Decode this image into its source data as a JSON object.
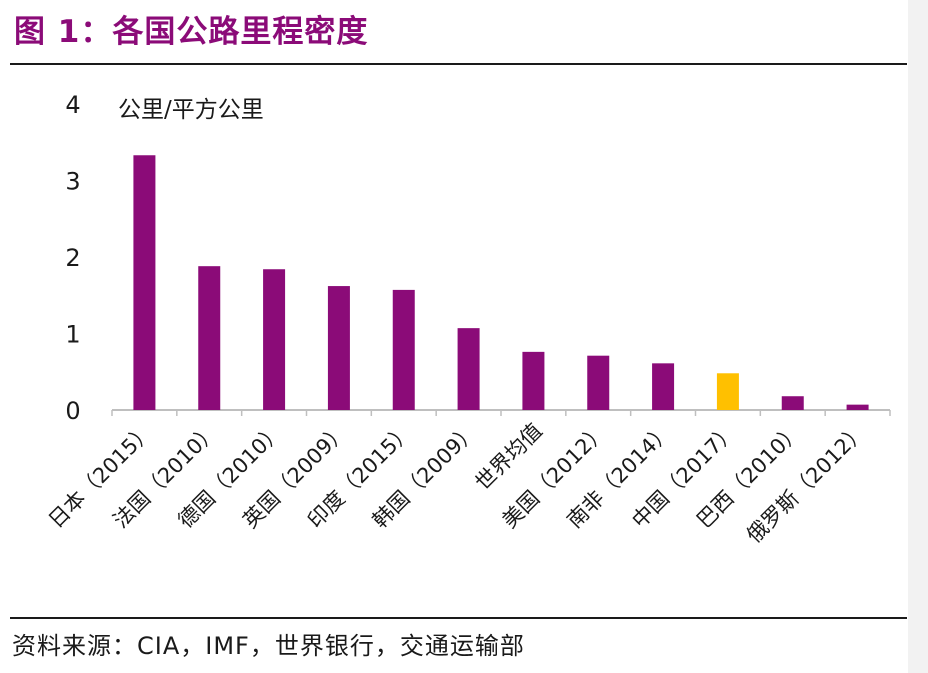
{
  "figure": {
    "title": "图 1：各国公路里程密度",
    "source": "资料来源：CIA，IMF，世界银行，交通运输部"
  },
  "chart_data": {
    "type": "bar",
    "title": "",
    "ylabel": "公里/平方公里",
    "xlabel": "",
    "ylim": [
      0,
      4
    ],
    "yticks": [
      "0",
      "1",
      "2",
      "3",
      "4"
    ],
    "grid": false,
    "legend": "none",
    "categories": [
      "日本（2015）",
      "法国（2010）",
      "德国（2010）",
      "英国（2009）",
      "印度（2015）",
      "韩国（2009）",
      "世界均值",
      "美国（2012）",
      "南非（2014）",
      "中国（2017）",
      "巴西（2010）",
      "俄罗斯（2012）"
    ],
    "values": [
      3.33,
      1.88,
      1.84,
      1.62,
      1.57,
      1.07,
      0.76,
      0.71,
      0.61,
      0.48,
      0.18,
      0.07
    ],
    "colors": {
      "default": "#8B0B78",
      "highlight": "#FFC000",
      "highlight_category": "中国（2017）",
      "axis": "#bfbfbf",
      "title": "#8B0B78",
      "text": "#1a1a1a"
    }
  }
}
